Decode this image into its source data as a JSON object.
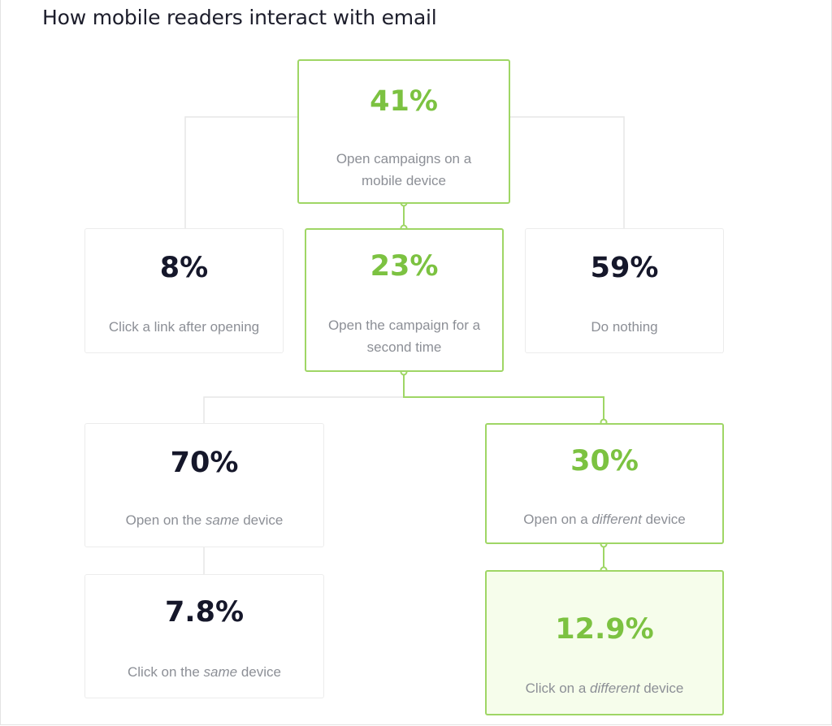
{
  "title": "How mobile readers interact with email",
  "colors": {
    "accent": "#7cc241",
    "accent_border": "#9fd665",
    "dark": "#15172a",
    "muted": "#8c8f96",
    "fill": "#f6fdeb"
  },
  "nodes": {
    "open_mobile": {
      "value": "41%",
      "label_line1": "Open campaigns on a",
      "label_line2": "mobile device"
    },
    "click_link": {
      "value": "8%",
      "label": "Click a link after opening"
    },
    "open_second": {
      "value": "23%",
      "label_line1": "Open the campaign for a",
      "label_line2": "second time"
    },
    "do_nothing": {
      "value": "59%",
      "label": "Do nothing"
    },
    "same_device": {
      "value": "70%",
      "label_pre": "Open on the ",
      "label_em": "same",
      "label_post": " device"
    },
    "different_device": {
      "value": "30%",
      "label_pre": "Open on a ",
      "label_em": "different",
      "label_post": " device"
    },
    "click_same": {
      "value": "7.8%",
      "label_pre": "Click on the ",
      "label_em": "same",
      "label_post": " device"
    },
    "click_different": {
      "value": "12.9%",
      "label_pre": "Click on a ",
      "label_em": "different",
      "label_post": " device"
    }
  }
}
